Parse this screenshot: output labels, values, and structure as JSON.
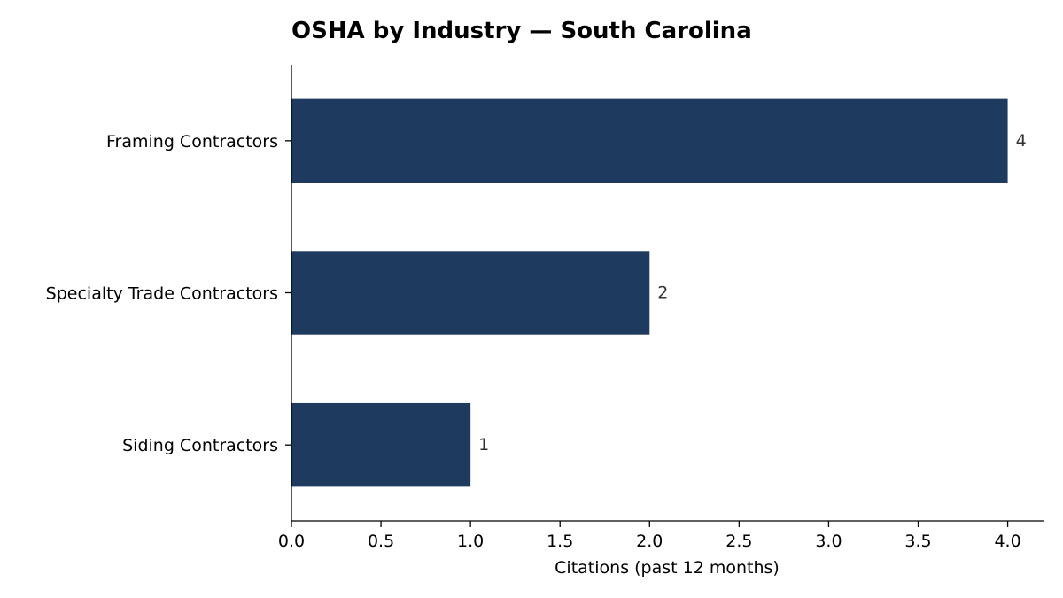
{
  "chart_data": {
    "type": "bar",
    "orientation": "horizontal",
    "title": "OSHA by Industry — South Carolina",
    "xlabel": "Citations (past 12 months)",
    "ylabel": "",
    "categories": [
      "Framing Contractors",
      "Specialty Trade Contractors",
      "Siding Contractors"
    ],
    "values": [
      4,
      2,
      1
    ],
    "data_labels": [
      "4",
      "2",
      "1"
    ],
    "xlim": [
      0,
      4.2
    ],
    "x_ticks": [
      0.0,
      0.5,
      1.0,
      1.5,
      2.0,
      2.5,
      3.0,
      3.5,
      4.0
    ],
    "x_tick_labels": [
      "0.0",
      "0.5",
      "1.0",
      "1.5",
      "2.0",
      "2.5",
      "3.0",
      "3.5",
      "4.0"
    ],
    "bar_color": "#1f3a5f",
    "grid": false,
    "legend": "none"
  }
}
